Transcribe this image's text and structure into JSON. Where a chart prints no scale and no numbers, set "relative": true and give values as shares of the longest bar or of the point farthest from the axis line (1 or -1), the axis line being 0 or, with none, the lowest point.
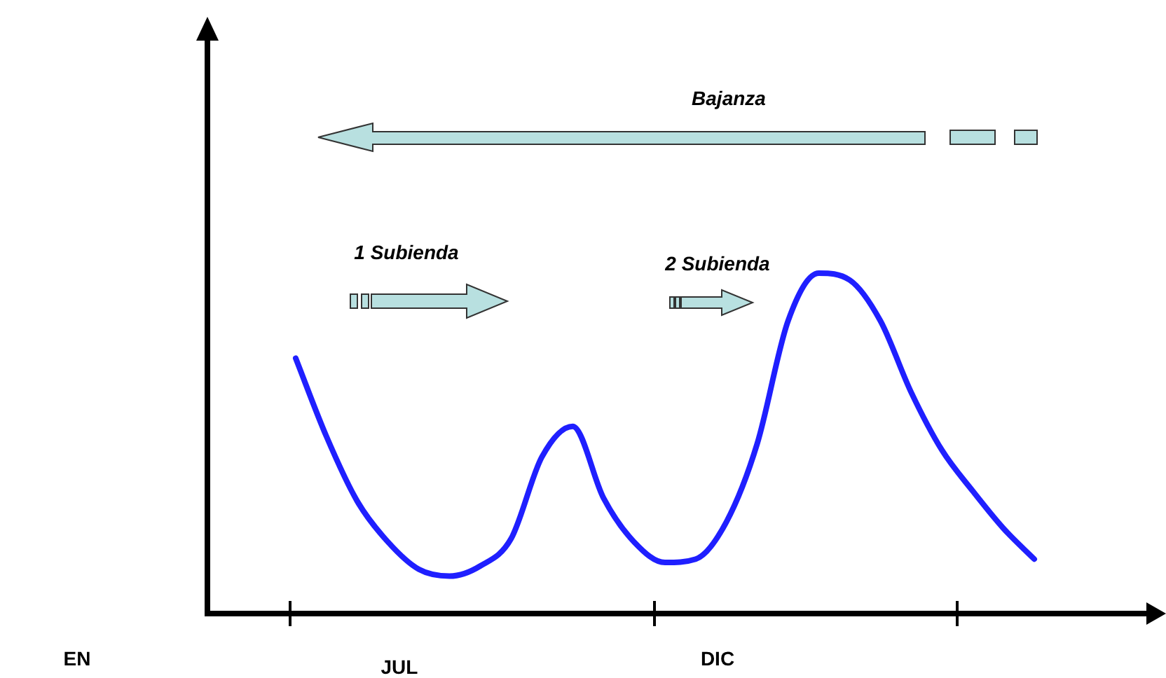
{
  "chart_data": {
    "type": "line",
    "relative": true,
    "tick_labels": false,
    "grid": false,
    "legend": false,
    "marker": "none",
    "line_style": "solid",
    "categories": [
      null,
      null,
      null,
      null,
      null,
      null,
      null,
      null,
      null,
      null,
      null,
      null,
      null,
      null,
      null,
      null,
      null,
      null,
      null,
      null,
      null,
      null,
      null,
      null,
      null
    ],
    "series": [
      {
        "color": "#1f1fff",
        "values": [
          0.75,
          0.52,
          0.33,
          0.21,
          0.13,
          0.11,
          0.14,
          0.22,
          0.46,
          0.55,
          0.34,
          0.21,
          0.15,
          0.16,
          0.27,
          0.5,
          0.86,
          1,
          0.98,
          0.86,
          0.65,
          0.48,
          0.36,
          0.25,
          0.16
        ]
      }
    ],
    "annotations": [
      "Bajanza",
      "1 Subienda",
      "2 Subienda",
      "EN",
      "JUL",
      "DIC"
    ]
  }
}
